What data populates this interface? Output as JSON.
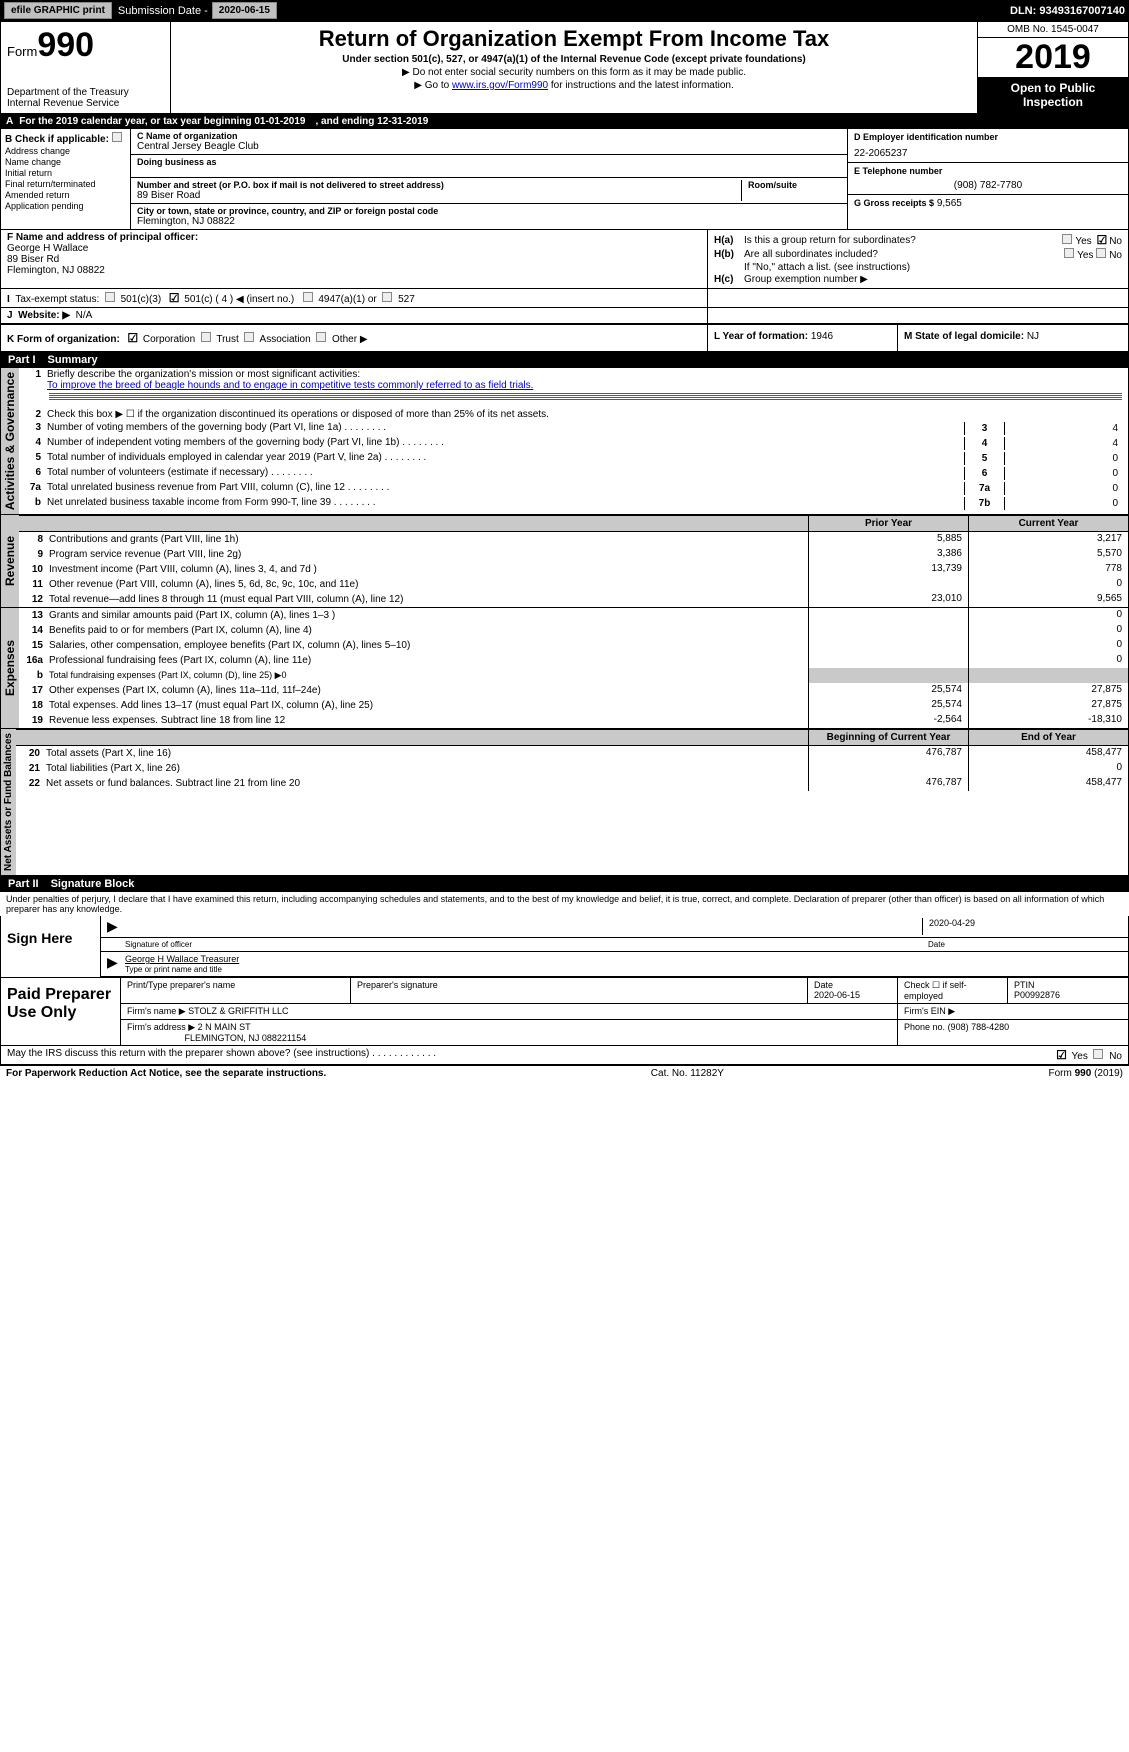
{
  "topbar": {
    "efile": "efile GRAPHIC print",
    "submission_label": "Submission Date -",
    "submission_date": "2020-06-15",
    "dln_label": "DLN:",
    "dln": "93493167007140"
  },
  "header": {
    "form_prefix": "Form",
    "form_number": "990",
    "dept1": "Department of the Treasury",
    "dept2": "Internal Revenue Service",
    "title": "Return of Organization Exempt From Income Tax",
    "subtitle": "Under section 501(c), 527, or 4947(a)(1) of the Internal Revenue Code (except private foundations)",
    "note1": "▶ Do not enter social security numbers on this form as it may be made public.",
    "note2_prefix": "▶ Go to ",
    "note2_link": "www.irs.gov/Form990",
    "note2_suffix": " for instructions and the latest information.",
    "omb": "OMB No. 1545-0047",
    "year": "2019",
    "open": "Open to Public Inspection"
  },
  "row_a": {
    "text": "For the 2019 calendar year, or tax year beginning 01-01-2019",
    "ending": ", and ending 12-31-2019"
  },
  "col_b": {
    "header": "Check if applicable:",
    "items": [
      "Address change",
      "Name change",
      "Initial return",
      "Final return/terminated",
      "Amended return",
      "Application pending"
    ]
  },
  "col_c": {
    "name_label": "C Name of organization",
    "name": "Central Jersey Beagle Club",
    "dba_label": "Doing business as",
    "street_label": "Number and street (or P.O. box if mail is not delivered to street address)",
    "room_label": "Room/suite",
    "street": "89 Biser Road",
    "city_label": "City or town, state or province, country, and ZIP or foreign postal code",
    "city": "Flemington, NJ  08822"
  },
  "col_d": {
    "ein_label": "D Employer identification number",
    "ein": "22-2065237",
    "phone_label": "E Telephone number",
    "phone": "(908) 782-7780",
    "gross_label": "G Gross receipts $",
    "gross": "9,565"
  },
  "col_f": {
    "label": "F Name and address of principal officer:",
    "name": "George H Wallace",
    "addr1": "89 Biser Rd",
    "addr2": "Flemington, NJ  08822"
  },
  "col_h": {
    "ha": "Is this a group return for subordinates?",
    "hb": "Are all subordinates included?",
    "hb_note": "If \"No,\" attach a list. (see instructions)",
    "hc": "Group exemption number ▶",
    "yes": "Yes",
    "no": "No"
  },
  "row_i": {
    "label": "Tax-exempt status:",
    "opt1": "501(c)(3)",
    "opt2": "501(c) ( 4 ) ◀ (insert no.)",
    "opt3": "4947(a)(1) or",
    "opt4": "527"
  },
  "row_j": {
    "label": "Website: ▶",
    "value": "N/A"
  },
  "row_k": {
    "label": "K Form of organization:",
    "opts": [
      "Corporation",
      "Trust",
      "Association",
      "Other ▶"
    ]
  },
  "row_l": {
    "label": "L Year of formation:",
    "value": "1946"
  },
  "row_m": {
    "label": "M State of legal domicile:",
    "value": "NJ"
  },
  "part1": {
    "num": "Part I",
    "title": "Summary"
  },
  "governance": {
    "label": "Activities & Governance",
    "l1_label": "Briefly describe the organization's mission or most significant activities:",
    "l1_text": "To improve the breed of beagle hounds and to engage in competitive tests commonly referred to as field trials.",
    "l2": "Check this box ▶ ☐  if the organization discontinued its operations or disposed of more than 25% of its net assets.",
    "lines": [
      {
        "n": "3",
        "d": "Number of voting members of the governing body (Part VI, line 1a)",
        "cell": "3",
        "v": "4"
      },
      {
        "n": "4",
        "d": "Number of independent voting members of the governing body (Part VI, line 1b)",
        "cell": "4",
        "v": "4"
      },
      {
        "n": "5",
        "d": "Total number of individuals employed in calendar year 2019 (Part V, line 2a)",
        "cell": "5",
        "v": "0"
      },
      {
        "n": "6",
        "d": "Total number of volunteers (estimate if necessary)",
        "cell": "6",
        "v": "0"
      },
      {
        "n": "7a",
        "d": "Total unrelated business revenue from Part VIII, column (C), line 12",
        "cell": "7a",
        "v": "0"
      },
      {
        "n": "b",
        "d": "Net unrelated business taxable income from Form 990-T, line 39",
        "cell": "7b",
        "v": "0"
      }
    ]
  },
  "twocol_headers": {
    "prior": "Prior Year",
    "current": "Current Year"
  },
  "revenue": {
    "label": "Revenue",
    "lines": [
      {
        "n": "8",
        "d": "Contributions and grants (Part VIII, line 1h)",
        "p": "5,885",
        "c": "3,217"
      },
      {
        "n": "9",
        "d": "Program service revenue (Part VIII, line 2g)",
        "p": "3,386",
        "c": "5,570"
      },
      {
        "n": "10",
        "d": "Investment income (Part VIII, column (A), lines 3, 4, and 7d )",
        "p": "13,739",
        "c": "778"
      },
      {
        "n": "11",
        "d": "Other revenue (Part VIII, column (A), lines 5, 6d, 8c, 9c, 10c, and 11e)",
        "p": "",
        "c": "0"
      },
      {
        "n": "12",
        "d": "Total revenue—add lines 8 through 11 (must equal Part VIII, column (A), line 12)",
        "p": "23,010",
        "c": "9,565"
      }
    ]
  },
  "expenses": {
    "label": "Expenses",
    "lines": [
      {
        "n": "13",
        "d": "Grants and similar amounts paid (Part IX, column (A), lines 1–3 )",
        "p": "",
        "c": "0"
      },
      {
        "n": "14",
        "d": "Benefits paid to or for members (Part IX, column (A), line 4)",
        "p": "",
        "c": "0"
      },
      {
        "n": "15",
        "d": "Salaries, other compensation, employee benefits (Part IX, column (A), lines 5–10)",
        "p": "",
        "c": "0"
      },
      {
        "n": "16a",
        "d": "Professional fundraising fees (Part IX, column (A), line 11e)",
        "p": "",
        "c": "0"
      },
      {
        "n": "b",
        "d": "Total fundraising expenses (Part IX, column (D), line 25) ▶0",
        "p": null,
        "c": null
      },
      {
        "n": "17",
        "d": "Other expenses (Part IX, column (A), lines 11a–11d, 11f–24e)",
        "p": "25,574",
        "c": "27,875"
      },
      {
        "n": "18",
        "d": "Total expenses. Add lines 13–17 (must equal Part IX, column (A), line 25)",
        "p": "25,574",
        "c": "27,875"
      },
      {
        "n": "19",
        "d": "Revenue less expenses. Subtract line 18 from line 12",
        "p": "-2,564",
        "c": "-18,310"
      }
    ]
  },
  "netassets_headers": {
    "begin": "Beginning of Current Year",
    "end": "End of Year"
  },
  "netassets": {
    "label": "Net Assets or Fund Balances",
    "lines": [
      {
        "n": "20",
        "d": "Total assets (Part X, line 16)",
        "p": "476,787",
        "c": "458,477"
      },
      {
        "n": "21",
        "d": "Total liabilities (Part X, line 26)",
        "p": "",
        "c": "0"
      },
      {
        "n": "22",
        "d": "Net assets or fund balances. Subtract line 21 from line 20",
        "p": "476,787",
        "c": "458,477"
      }
    ]
  },
  "part2": {
    "num": "Part II",
    "title": "Signature Block"
  },
  "perjury": "Under penalties of perjury, I declare that I have examined this return, including accompanying schedules and statements, and to the best of my knowledge and belief, it is true, correct, and complete. Declaration of preparer (other than officer) is based on all information of which preparer has any knowledge.",
  "sign": {
    "side": "Sign Here",
    "date": "2020-04-29",
    "sig_label": "Signature of officer",
    "date_label": "Date",
    "name": "George H Wallace Treasurer",
    "name_label": "Type or print name and title"
  },
  "paid": {
    "side": "Paid Preparer Use Only",
    "h1": "Print/Type preparer's name",
    "h2": "Preparer's signature",
    "h3": "Date",
    "h3v": "2020-06-15",
    "h4": "Check ☐ if self-employed",
    "h5": "PTIN",
    "h5v": "P00992876",
    "firm_label": "Firm's name    ▶",
    "firm": "STOLZ & GRIFFITH LLC",
    "ein_label": "Firm's EIN ▶",
    "addr_label": "Firm's address ▶",
    "addr1": "2 N MAIN ST",
    "addr2": "FLEMINGTON, NJ  088221154",
    "phone_label": "Phone no.",
    "phone": "(908) 788-4280"
  },
  "discuss": {
    "text": "May the IRS discuss this return with the preparer shown above? (see instructions)",
    "yes": "Yes",
    "no": "No"
  },
  "footer": {
    "left": "For Paperwork Reduction Act Notice, see the separate instructions.",
    "mid": "Cat. No. 11282Y",
    "right": "Form 990 (2019)"
  }
}
